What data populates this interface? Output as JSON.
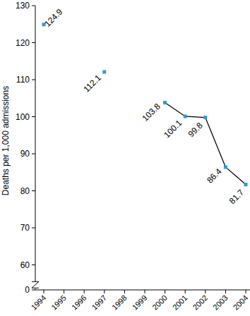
{
  "chart_data": {
    "type": "line",
    "y_label": "Deaths per 1,000 admissions",
    "categories": [
      "1994",
      "1995",
      "1996",
      "1997",
      "1998",
      "1999",
      "2000",
      "2001",
      "2002",
      "2003",
      "2004"
    ],
    "values": [
      124.9,
      null,
      null,
      112.1,
      null,
      null,
      103.8,
      100.1,
      99.8,
      86.4,
      81.7
    ],
    "color": "#3399cc",
    "marker": "square",
    "ylim": [
      0,
      130
    ],
    "y_break": [
      0,
      60
    ],
    "yticks": [
      0,
      60,
      70,
      80,
      90,
      100,
      110,
      120,
      130
    ],
    "data_labels": true,
    "grid": false
  }
}
